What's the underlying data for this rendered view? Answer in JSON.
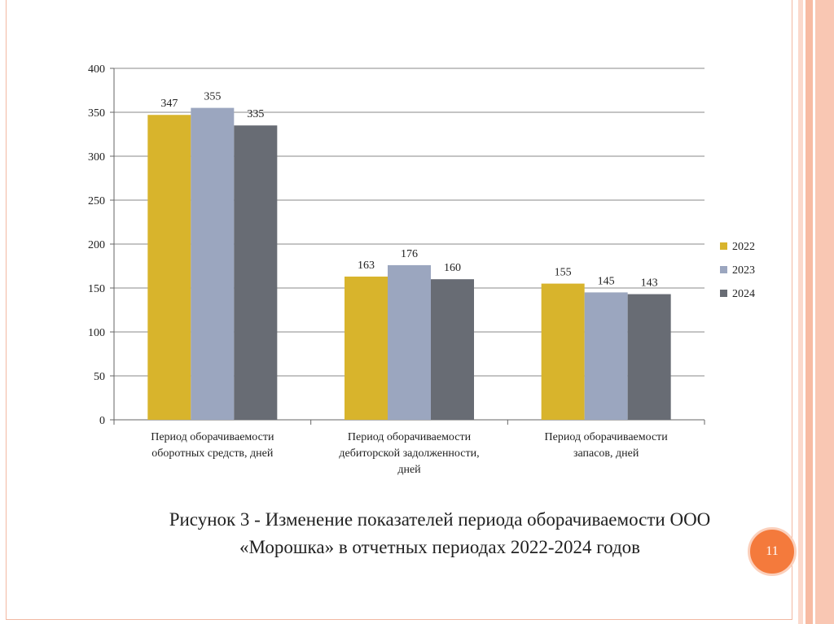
{
  "caption": {
    "line1": "Рисунок 3 - Изменение показателей периода оборачиваемости ООО",
    "line2": "«Морошка» в отчетных периодах 2022-2024 годов"
  },
  "page_number": "11",
  "colors": {
    "series_2022": "#d8b42c",
    "series_2023": "#9ba6bf",
    "series_2024": "#686c74",
    "accent": "#f47a3c",
    "gridline": "#8a8a8a"
  },
  "chart_data": {
    "type": "bar",
    "categories": [
      [
        "Период оборачиваемости",
        "оборотных средств, дней"
      ],
      [
        "Период оборачиваемости",
        "дебиторской задолженности,",
        "дней"
      ],
      [
        "Период оборачиваемости",
        "запасов, дней"
      ]
    ],
    "series": [
      {
        "name": "2022",
        "values": [
          347,
          163,
          155
        ]
      },
      {
        "name": "2023",
        "values": [
          355,
          176,
          145
        ]
      },
      {
        "name": "2024",
        "values": [
          335,
          160,
          143
        ]
      }
    ],
    "ylim": [
      0,
      400
    ],
    "yticks": [
      0,
      50,
      100,
      150,
      200,
      250,
      300,
      350,
      400
    ],
    "grid": true,
    "legend_position": "right",
    "data_labels": true
  }
}
